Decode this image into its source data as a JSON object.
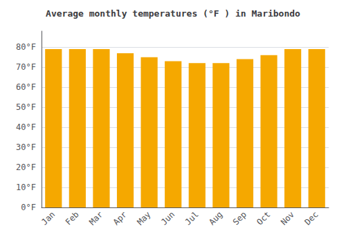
{
  "chart_data": {
    "type": "bar",
    "title": "Average monthly temperatures (°F ) in Maribondo",
    "categories": [
      "Jan",
      "Feb",
      "Mar",
      "Apr",
      "May",
      "Jun",
      "Jul",
      "Aug",
      "Sep",
      "Oct",
      "Nov",
      "Dec"
    ],
    "values": [
      79,
      79,
      79,
      77,
      75,
      73,
      72,
      72,
      74,
      76,
      79,
      79
    ],
    "color": "#F5A800",
    "ylim": [
      0,
      88
    ],
    "yticks": [
      {
        "value": 0,
        "label": "0°F"
      },
      {
        "value": 10,
        "label": "10°F"
      },
      {
        "value": 20,
        "label": "20°F"
      },
      {
        "value": 30,
        "label": "30°F"
      },
      {
        "value": 40,
        "label": "40°F"
      },
      {
        "value": 50,
        "label": "50°F"
      },
      {
        "value": 60,
        "label": "60°F"
      },
      {
        "value": 70,
        "label": "70°F"
      },
      {
        "value": 80,
        "label": "80°F"
      }
    ],
    "grid": true
  }
}
